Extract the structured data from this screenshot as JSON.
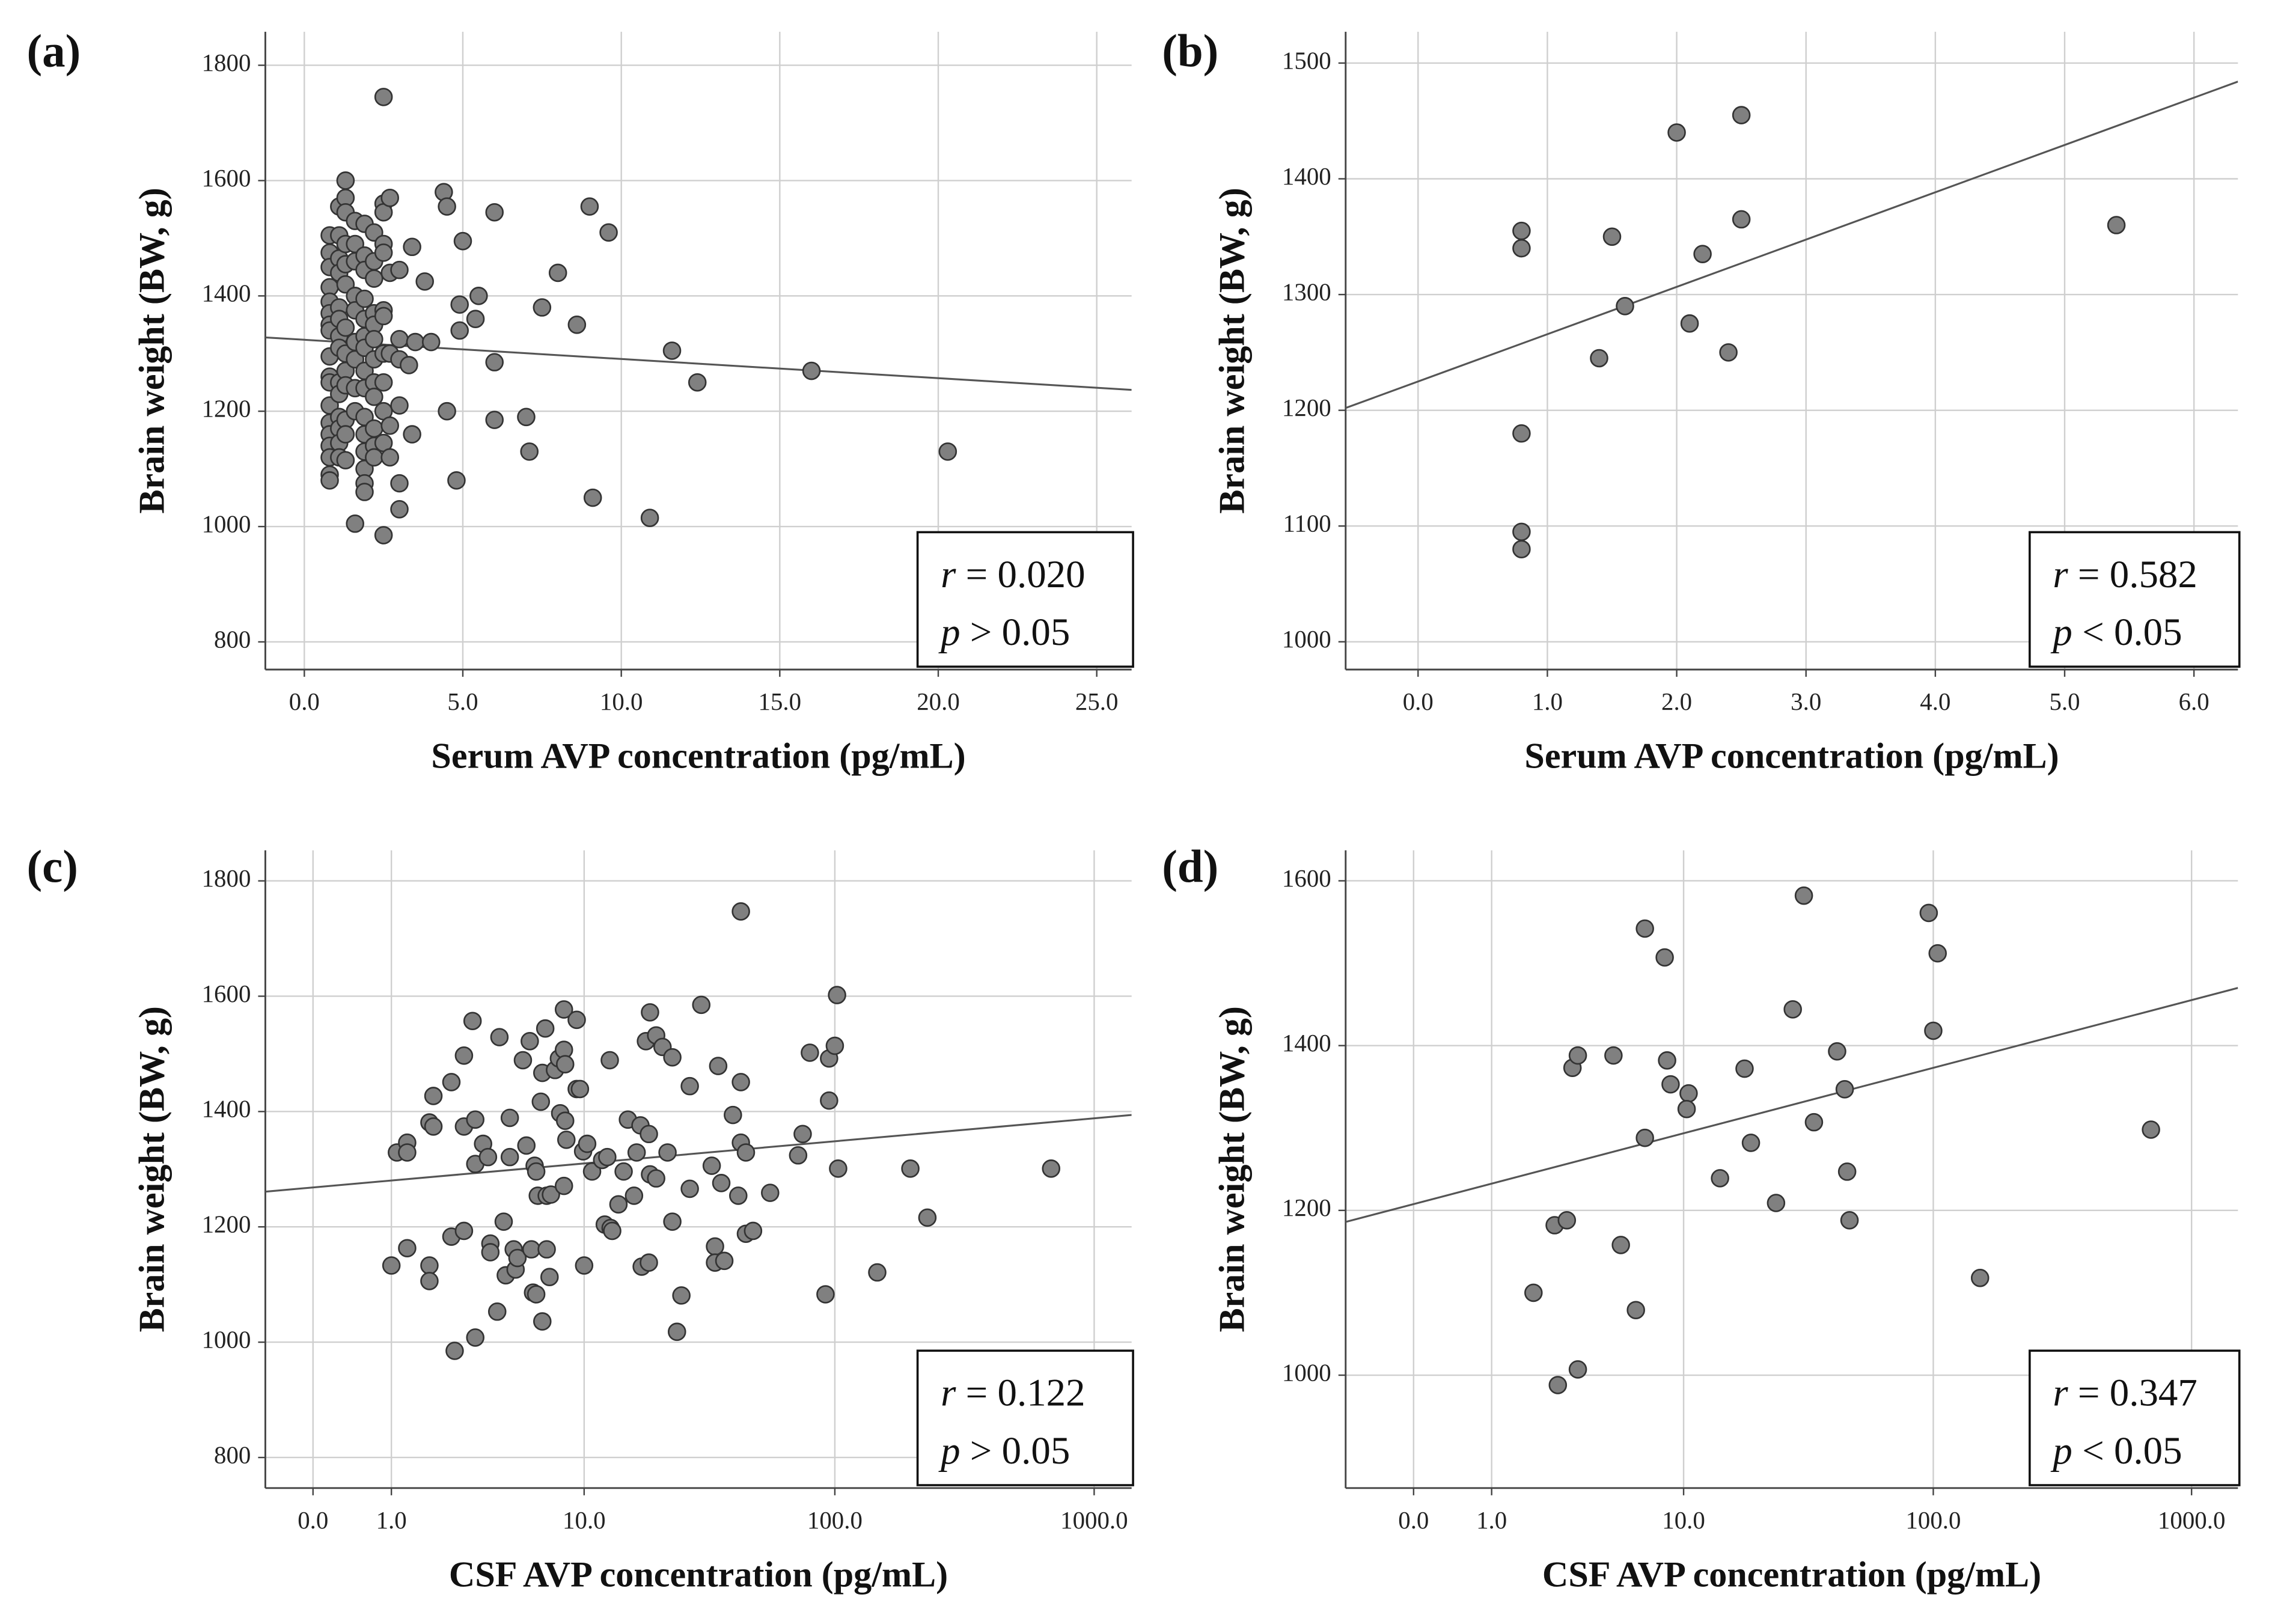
{
  "chart_data": [
    {
      "type": "scatter",
      "panel_label": "(a)",
      "x_label": "Serum AVP concentration (pg/mL)",
      "y_label": "Brain weight (BW, g)",
      "xlim": [
        -1.23,
        26.1
      ],
      "ylim": [
        752,
        1858
      ],
      "xticks": [
        {
          "value": 0,
          "label": "0.0"
        },
        {
          "value": 5,
          "label": "5.0"
        },
        {
          "value": 10,
          "label": "10.0"
        },
        {
          "value": 15,
          "label": "15.0"
        },
        {
          "value": 20,
          "label": "20.0"
        },
        {
          "value": 25,
          "label": "25.0"
        }
      ],
      "yticks": [
        800,
        1000,
        1200,
        1400,
        1600,
        1800
      ],
      "grid": true,
      "color": "#808080",
      "fit_line": {
        "x": [
          -1.23,
          26.1
        ],
        "y": [
          1328,
          1237
        ]
      },
      "stats": [
        {
          "symbol": "r",
          "text": "= 0.020"
        },
        {
          "symbol": "p",
          "text": "> 0.05"
        }
      ],
      "x": [
        0.8,
        0.8,
        0.8,
        0.8,
        0.8,
        0.8,
        0.8,
        0.8,
        0.8,
        0.8,
        0.8,
        0.8,
        0.8,
        0.8,
        0.8,
        0.8,
        0.8,
        0.8,
        1.1,
        1.1,
        1.1,
        1.1,
        1.1,
        1.1,
        1.1,
        1.1,
        1.1,
        1.1,
        1.1,
        1.1,
        1.1,
        1.1,
        1.3,
        1.3,
        1.3,
        1.3,
        1.3,
        1.3,
        1.3,
        1.3,
        1.3,
        1.3,
        1.3,
        1.3,
        1.3,
        1.6,
        1.6,
        1.6,
        1.6,
        1.6,
        1.6,
        1.6,
        1.6,
        1.6,
        1.6,
        1.9,
        1.9,
        1.9,
        1.9,
        1.9,
        1.9,
        1.9,
        1.9,
        1.9,
        1.9,
        1.9,
        1.9,
        1.9,
        1.9,
        1.9,
        2.2,
        2.2,
        2.2,
        2.2,
        2.2,
        2.2,
        2.2,
        2.2,
        2.2,
        2.2,
        2.2,
        2.2,
        2.5,
        2.5,
        2.5,
        2.5,
        2.5,
        2.5,
        2.5,
        2.5,
        2.5,
        2.5,
        2.5,
        2.5,
        2.7,
        2.7,
        2.7,
        2.7,
        2.7,
        3.0,
        3.0,
        3.0,
        3.0,
        3.0,
        3.0,
        3.4,
        3.5,
        3.4,
        3.3,
        3.8,
        4.0,
        4.4,
        4.5,
        4.5,
        4.8,
        4.9,
        4.9,
        5.0,
        5.4,
        5.5,
        6.0,
        6.0,
        6.0,
        7.0,
        7.1,
        7.5,
        8.0,
        8.6,
        9.0,
        9.1,
        9.6,
        10.9,
        11.6,
        12.4,
        16.0,
        20.3
      ],
      "values": [
        1505,
        1475,
        1450,
        1415,
        1390,
        1370,
        1350,
        1340,
        1295,
        1260,
        1250,
        1210,
        1180,
        1160,
        1140,
        1120,
        1090,
        1080,
        1555,
        1505,
        1465,
        1440,
        1380,
        1360,
        1330,
        1310,
        1250,
        1230,
        1190,
        1170,
        1145,
        1120,
        1600,
        1570,
        1545,
        1490,
        1455,
        1420,
        1345,
        1300,
        1270,
        1245,
        1185,
        1160,
        1115,
        1530,
        1490,
        1460,
        1400,
        1375,
        1320,
        1290,
        1240,
        1200,
        1005,
        1525,
        1470,
        1445,
        1395,
        1360,
        1330,
        1310,
        1270,
        1240,
        1190,
        1160,
        1130,
        1100,
        1075,
        1060,
        1510,
        1460,
        1430,
        1370,
        1350,
        1325,
        1290,
        1250,
        1225,
        1170,
        1140,
        1120,
        1745,
        1560,
        1545,
        1490,
        1475,
        1375,
        1365,
        1300,
        1250,
        1200,
        1145,
        985,
        1570,
        1440,
        1300,
        1175,
        1120,
        1445,
        1325,
        1290,
        1210,
        1075,
        1030,
        1485,
        1320,
        1160,
        1280,
        1425,
        1320,
        1580,
        1555,
        1200,
        1080,
        1385,
        1340,
        1495,
        1360,
        1400,
        1545,
        1285,
        1185,
        1190,
        1130,
        1380,
        1440,
        1350,
        1555,
        1050,
        1510,
        1015,
        1305,
        1250,
        1270,
        1130
      ]
    },
    {
      "type": "scatter",
      "panel_label": "(b)",
      "x_label": "Serum AVP concentration (pg/mL)",
      "y_label": "Brain weight (BW, g)",
      "xlim": [
        -0.56,
        6.34
      ],
      "ylim": [
        976,
        1527
      ],
      "xticks": [
        {
          "value": 0,
          "label": "0.0"
        },
        {
          "value": 1,
          "label": "1.0"
        },
        {
          "value": 2,
          "label": "2.0"
        },
        {
          "value": 3,
          "label": "3.0"
        },
        {
          "value": 4,
          "label": "4.0"
        },
        {
          "value": 5,
          "label": "5.0"
        },
        {
          "value": 6,
          "label": "6.0"
        }
      ],
      "yticks": [
        1000,
        1100,
        1200,
        1300,
        1400,
        1500
      ],
      "grid": true,
      "color": "#808080",
      "fit_line": {
        "x": [
          -0.56,
          6.34
        ],
        "y": [
          1202,
          1484
        ]
      },
      "stats": [
        {
          "symbol": "r",
          "text": "= 0.582"
        },
        {
          "symbol": "p",
          "text": "< 0.05"
        }
      ],
      "x": [
        0.8,
        0.8,
        0.8,
        0.8,
        0.8,
        1.4,
        1.5,
        1.6,
        2.0,
        2.1,
        2.2,
        2.4,
        2.5,
        2.5,
        5.4
      ],
      "values": [
        1355,
        1340,
        1180,
        1095,
        1080,
        1245,
        1350,
        1290,
        1440,
        1275,
        1335,
        1250,
        1455,
        1365,
        1360
      ]
    },
    {
      "type": "scatter",
      "panel_label": "(c)",
      "x_label": "CSF AVP concentration (pg/mL)",
      "y_label": "Brain weight (BW, g)",
      "xscale": "log1p",
      "xlim": [
        -0.344,
        1393
      ],
      "ylim": [
        747,
        1853
      ],
      "xticks": [
        {
          "value": 0,
          "label": "0.0"
        },
        {
          "value": 1,
          "label": "1.0"
        },
        {
          "value": 10,
          "label": "10.0"
        },
        {
          "value": 100,
          "label": "100.0"
        },
        {
          "value": 1000,
          "label": "1000.0"
        }
      ],
      "yticks": [
        800,
        1000,
        1200,
        1400,
        1600,
        1800
      ],
      "grid": true,
      "color": "#808080",
      "fit_line": {
        "x": [
          -0.344,
          1393
        ],
        "y": [
          1261,
          1394
        ]
      },
      "stats": [
        {
          "symbol": "r",
          "text": "= 0.122"
        },
        {
          "symbol": "p",
          "text": "> 0.05"
        }
      ],
      "x": [
        1.0,
        1.1,
        1.3,
        1.3,
        1.3,
        1.8,
        1.8,
        1.8,
        1.9,
        1.9,
        2.4,
        2.4,
        2.5,
        2.8,
        2.8,
        2.8,
        3.1,
        3.2,
        3.2,
        3.2,
        3.5,
        3.7,
        3.8,
        3.8,
        4.1,
        4.2,
        4.4,
        4.5,
        4.7,
        4.7,
        4.9,
        5.0,
        5.1,
        5.4,
        5.6,
        5.8,
        5.9,
        6.0,
        6.1,
        6.2,
        6.2,
        6.3,
        6.5,
        6.6,
        6.6,
        6.8,
        6.9,
        6.9,
        7.1,
        7.2,
        7.5,
        7.8,
        7.9,
        8.2,
        8.2,
        8.2,
        8.3,
        8.4,
        8.3,
        9.3,
        9.3,
        9.6,
        9.9,
        10.0,
        10.3,
        10.8,
        11.9,
        12.2,
        12.5,
        12.8,
        12.9,
        13.1,
        13.9,
        14.6,
        15.2,
        16.1,
        16.5,
        17.1,
        17.3,
        18.0,
        18.5,
        18.5,
        18.7,
        18.7,
        19.8,
        19.8,
        21,
        22,
        23,
        23,
        24,
        25,
        27,
        27,
        30,
        33,
        34,
        34,
        35,
        36,
        37,
        40,
        42,
        43,
        43,
        43,
        45,
        45,
        48,
        56,
        72,
        75,
        80,
        92,
        95,
        95,
        100,
        102,
        103,
        146,
        196,
        228,
        683
      ],
      "values": [
        1133,
        1329,
        1346,
        1329,
        1163,
        1133,
        1106,
        1381,
        1374,
        1427,
        1451,
        1183,
        985,
        1193,
        1374,
        1497,
        1557,
        1309,
        1386,
        1008,
        1344,
        1321,
        1171,
        1156,
        1053,
        1529,
        1209,
        1116,
        1389,
        1321,
        1161,
        1126,
        1146,
        1489,
        1341,
        1522,
        1161,
        1086,
        1306,
        1296,
        1083,
        1254,
        1417,
        1467,
        1036,
        1544,
        1161,
        1254,
        1113,
        1256,
        1472,
        1492,
        1397,
        1271,
        1577,
        1507,
        1384,
        1351,
        1482,
        1439,
        1559,
        1439,
        1331,
        1133,
        1344,
        1296,
        1316,
        1204,
        1321,
        1489,
        1198,
        1193,
        1239,
        1296,
        1386,
        1254,
        1329,
        1376,
        1131,
        1522,
        1361,
        1138,
        1572,
        1291,
        1532,
        1284,
        1512,
        1329,
        1209,
        1494,
        1018,
        1081,
        1266,
        1444,
        1585,
        1306,
        1166,
        1138,
        1479,
        1276,
        1141,
        1394,
        1254,
        1451,
        1747,
        1346,
        1188,
        1329,
        1193,
        1259,
        1324,
        1361,
        1502,
        1083,
        1492,
        1419,
        1514,
        1602,
        1301,
        1121,
        1301,
        1216,
        1301
      ]
    },
    {
      "type": "scatter",
      "panel_label": "(d)",
      "x_label": "CSF AVP concentration (pg/mL)",
      "y_label": "Brain weight (BW, g)",
      "xscale": "log1p",
      "xlim": [
        -0.453,
        1510
      ],
      "ylim": [
        863,
        1637
      ],
      "xticks": [
        {
          "value": 0,
          "label": "0.0"
        },
        {
          "value": 1,
          "label": "1.0"
        },
        {
          "value": 10,
          "label": "10.0"
        },
        {
          "value": 100,
          "label": "100.0"
        },
        {
          "value": 1000,
          "label": "1000.0"
        }
      ],
      "yticks": [
        1000,
        1200,
        1400,
        1600
      ],
      "grid": true,
      "color": "#808080",
      "fit_line": {
        "x": [
          -0.453,
          1510
        ],
        "y": [
          1186,
          1470
        ]
      },
      "stats": [
        {
          "symbol": "r",
          "text": "= 0.347"
        },
        {
          "symbol": "p",
          "text": "< 0.05"
        }
      ],
      "x": [
        1.9,
        2.5,
        2.9,
        2.6,
        3.3,
        3.1,
        3.3,
        4.9,
        5.3,
        6.2,
        6.8,
        6.8,
        8.3,
        8.5,
        8.8,
        10.5,
        10.3,
        14.2,
        17.9,
        19,
        24,
        28,
        31,
        34,
        42,
        45,
        46,
        47,
        96,
        100,
        104,
        152,
        697
      ],
      "values": [
        1100,
        1182,
        1188,
        988,
        1007,
        1373,
        1388,
        1388,
        1158,
        1079,
        1542,
        1288,
        1507,
        1382,
        1353,
        1342,
        1323,
        1239,
        1372,
        1282,
        1209,
        1444,
        1582,
        1307,
        1393,
        1347,
        1247,
        1188,
        1561,
        1418,
        1512,
        1118,
        1298
      ]
    }
  ]
}
